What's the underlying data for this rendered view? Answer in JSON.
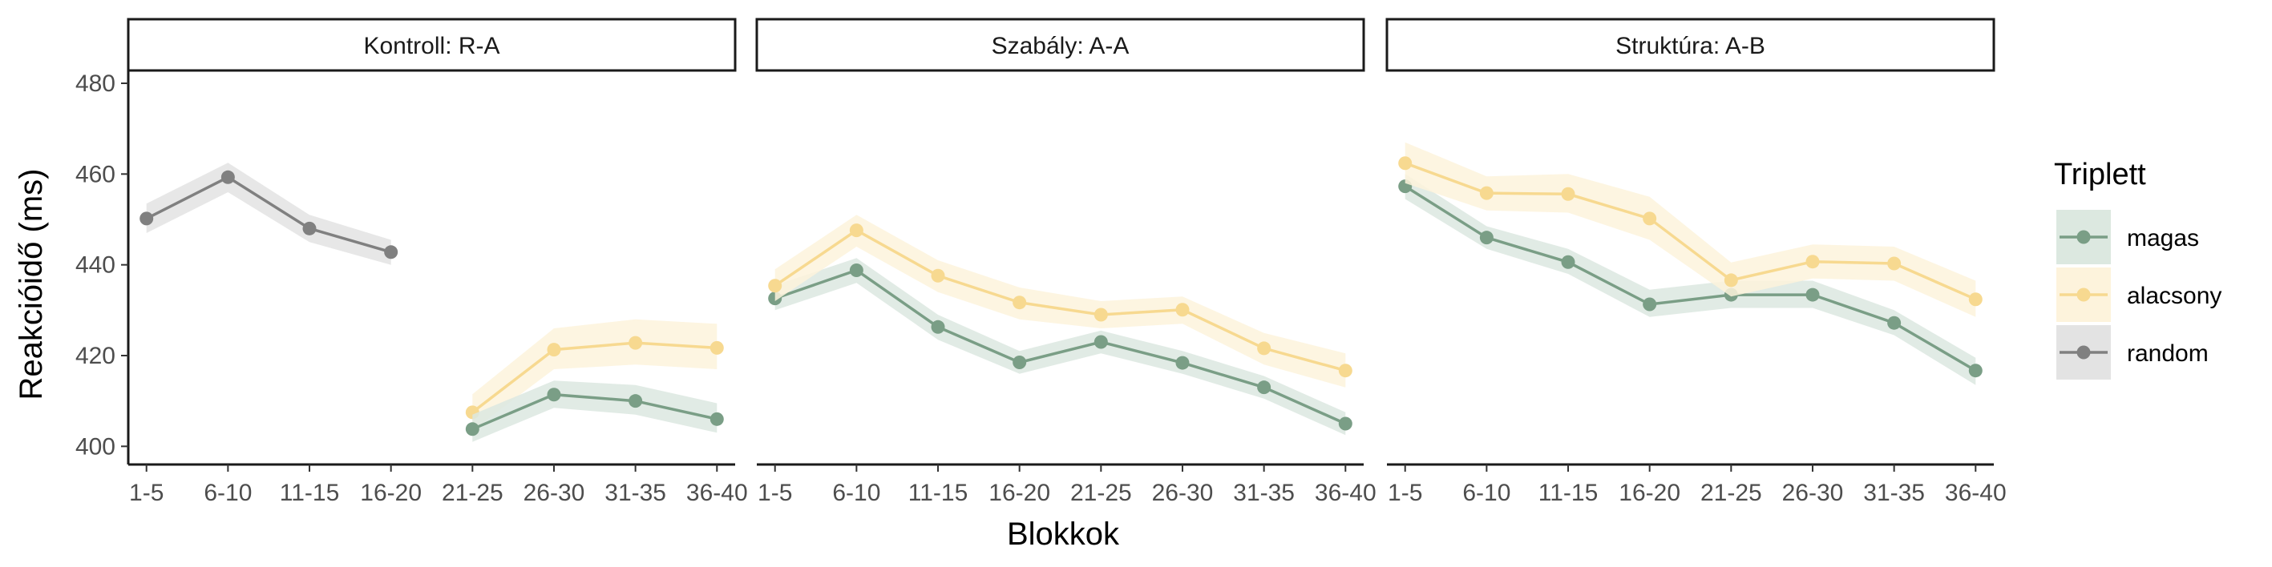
{
  "chart_data": {
    "type": "line",
    "xlabel": "Blokkok",
    "ylabel": "Reakcióidő (ms)",
    "ylim": [
      396,
      486
    ],
    "yticks": [
      400,
      420,
      440,
      460,
      480
    ],
    "categories": [
      "1-5",
      "6-10",
      "11-15",
      "16-20",
      "21-25",
      "26-30",
      "31-35",
      "36-40"
    ],
    "legend": {
      "title": "Triplett",
      "position": "right",
      "items": [
        {
          "key": "magas",
          "label": "magas",
          "color": "#7a9e86",
          "ribbon": "#dce8e0"
        },
        {
          "key": "alacsony",
          "label": "alacsony",
          "color": "#f7d990",
          "ribbon": "#fdf3dc"
        },
        {
          "key": "random",
          "label": "random",
          "color": "#808080",
          "ribbon": "#e3e3e3"
        }
      ]
    },
    "panels": [
      {
        "title": "Kontroll: R-A",
        "series": [
          {
            "key": "random",
            "values": [
              450.2,
              459.3,
              448.0,
              442.8,
              null,
              null,
              null,
              null
            ],
            "lower": [
              447,
              456,
              445,
              440,
              null,
              null,
              null,
              null
            ],
            "upper": [
              453.5,
              462.5,
              451,
              445.5,
              null,
              null,
              null,
              null
            ]
          },
          {
            "key": "alacsony",
            "values": [
              null,
              null,
              null,
              null,
              407.5,
              421.3,
              422.8,
              421.7
            ],
            "lower": [
              null,
              null,
              null,
              null,
              403.5,
              417,
              418,
              417
            ],
            "upper": [
              null,
              null,
              null,
              null,
              411.5,
              426,
              428,
              427
            ]
          },
          {
            "key": "magas",
            "values": [
              null,
              null,
              null,
              null,
              403.8,
              411.4,
              410.0,
              406.0
            ],
            "lower": [
              null,
              null,
              null,
              null,
              401,
              408.5,
              407,
              403
            ],
            "upper": [
              null,
              null,
              null,
              null,
              407,
              414.5,
              413.5,
              409.5
            ]
          }
        ]
      },
      {
        "title": "Szabály: A-A",
        "series": [
          {
            "key": "magas",
            "values": [
              432.6,
              438.8,
              426.3,
              418.5,
              423.0,
              418.4,
              413.0,
              405.0
            ],
            "lower": [
              430,
              436,
              423.5,
              416,
              420.5,
              416,
              410.5,
              402.5
            ],
            "upper": [
              435.5,
              441.5,
              429,
              421,
              425.5,
              421,
              415.5,
              407.5
            ]
          },
          {
            "key": "alacsony",
            "values": [
              435.4,
              447.6,
              437.6,
              431.7,
              429.0,
              430.1,
              421.6,
              416.7
            ],
            "lower": [
              432,
              444,
              434,
              428,
              426,
              427,
              418,
              413
            ],
            "upper": [
              439,
              451,
              441,
              435,
              432,
              433,
              425,
              420.5
            ]
          }
        ]
      },
      {
        "title": "Struktúra: A-B",
        "series": [
          {
            "key": "magas",
            "values": [
              457.3,
              446.0,
              440.6,
              431.3,
              433.4,
              433.4,
              427.2,
              416.7
            ],
            "lower": [
              454.5,
              443.5,
              438,
              428.5,
              430.5,
              430.5,
              424.5,
              413.5
            ],
            "upper": [
              460,
              448.5,
              443.5,
              434.5,
              436.5,
              436.5,
              430,
              419.5
            ]
          },
          {
            "key": "alacsony",
            "values": [
              462.4,
              455.8,
              455.6,
              450.2,
              436.6,
              440.7,
              440.3,
              432.4
            ],
            "lower": [
              458,
              452,
              451.5,
              445.5,
              433,
              437,
              436.5,
              428.5
            ],
            "upper": [
              467,
              459.5,
              460,
              455,
              440.5,
              444.5,
              444,
              436.5
            ]
          }
        ]
      }
    ]
  }
}
